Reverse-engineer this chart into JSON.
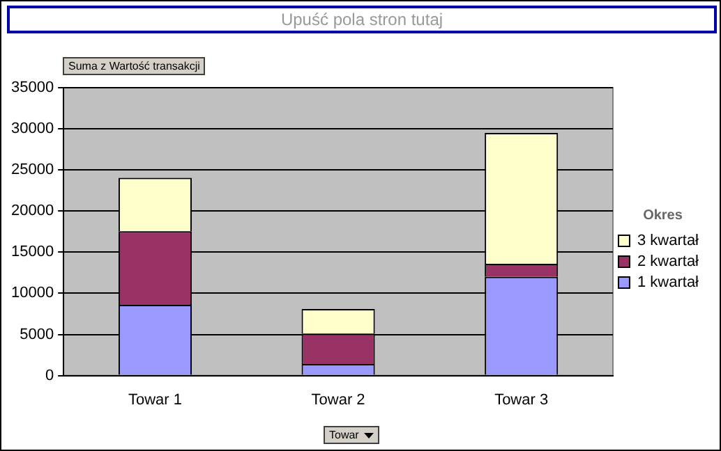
{
  "chart_data": {
    "type": "bar",
    "title": "Upuść pola stron tutaj",
    "ylabel": "Suma z Wartość transakcji",
    "xlabel": "Towar",
    "legend_title": "Okres",
    "categories": [
      "Towar 1",
      "Towar 2",
      "Towar 3"
    ],
    "stacked": true,
    "series": [
      {
        "name": "1 kwartał",
        "color": "#9999ff",
        "values": [
          8600,
          1400,
          12000
        ]
      },
      {
        "name": "2 kwartał",
        "color": "#993366",
        "values": [
          8950,
          3700,
          1600
        ]
      },
      {
        "name": "3 kwartał",
        "color": "#ffffcc",
        "values": [
          6500,
          3000,
          15900
        ]
      }
    ],
    "ylim": [
      0,
      35000
    ],
    "yticks": [
      0,
      5000,
      10000,
      15000,
      20000,
      25000,
      30000,
      35000
    ],
    "grid": "y",
    "legend": "right"
  }
}
